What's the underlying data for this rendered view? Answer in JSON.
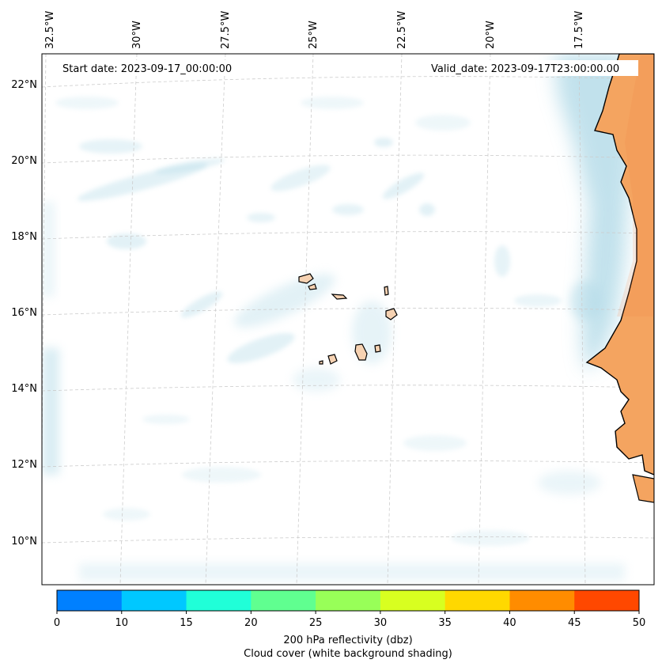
{
  "map": {
    "start_date_text": "Start date: 2023-09-17_00:00:00",
    "valid_date_text": "Valid_date: 2023-09-17T23:00:00.00",
    "lon_labels": [
      "32.5°W",
      "30°W",
      "27.5°W",
      "25°W",
      "22.5°W",
      "20°W",
      "17.5°W"
    ],
    "lat_labels": [
      "22°N",
      "20°N",
      "18°N",
      "16°N",
      "14°N",
      "12°N",
      "10°N"
    ],
    "land_color": "#f4a460",
    "cloud_color": "#add8e6"
  },
  "colorbar": {
    "ticks": [
      "0",
      "10",
      "15",
      "20",
      "25",
      "30",
      "35",
      "40",
      "45",
      "50"
    ],
    "colors": [
      "#0080ff",
      "#00c8ff",
      "#20ffd8",
      "#60ff90",
      "#98ff58",
      "#d8ff20",
      "#ffd800",
      "#ff8c00",
      "#ff4800"
    ],
    "label_line1": "200 hPa reflectivity (dbz)",
    "label_line2": "Cloud cover (white background shading)"
  }
}
